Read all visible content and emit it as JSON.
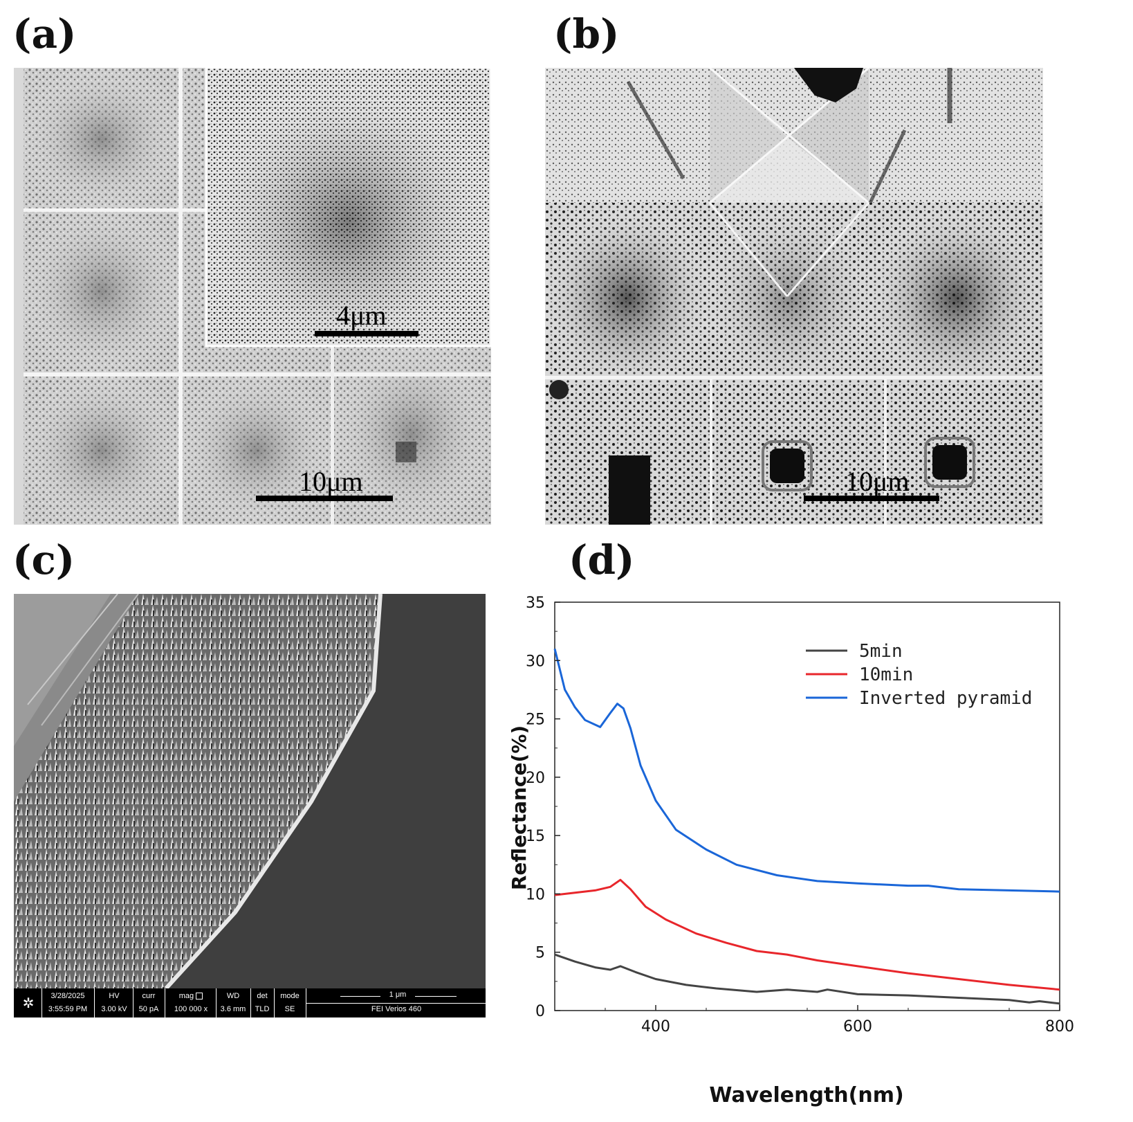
{
  "panels": {
    "a": {
      "label": "(a)",
      "scale_main": "10μm",
      "scale_inset": "4μm"
    },
    "b": {
      "label": "(b)",
      "scale_main": "10μm"
    },
    "c": {
      "label": "(c)",
      "databar": {
        "date": "3/28/2025",
        "time": "3:55:59 PM",
        "hv_label": "HV",
        "hv": "3.00 kV",
        "curr_label": "curr",
        "curr": "50 pA",
        "mag_label": "mag",
        "mag": "100 000 x",
        "wd_label": "WD",
        "wd": "3.6 mm",
        "det_label": "det",
        "det": "TLD",
        "mode_label": "mode",
        "mode": "SE",
        "scale": "1 μm",
        "instrument": "FEI Verios 460"
      }
    },
    "d": {
      "label": "(d)"
    }
  },
  "chart_data": {
    "type": "line",
    "xlabel": "Wavelength(nm)",
    "ylabel": "Reflectance(%)",
    "xlim": [
      300,
      800
    ],
    "ylim": [
      0,
      35
    ],
    "xticks": [
      400,
      600,
      800
    ],
    "yticks": [
      0,
      5,
      10,
      15,
      20,
      25,
      30,
      35
    ],
    "legend_position": "top-right",
    "series": [
      {
        "name": "5min",
        "color": "#444444",
        "x": [
          300,
          320,
          340,
          355,
          365,
          380,
          400,
          430,
          460,
          500,
          530,
          560,
          570,
          600,
          650,
          700,
          750,
          770,
          780,
          800
        ],
        "y": [
          4.8,
          4.2,
          3.7,
          3.5,
          3.8,
          3.3,
          2.7,
          2.2,
          1.9,
          1.6,
          1.8,
          1.6,
          1.8,
          1.4,
          1.3,
          1.1,
          0.9,
          0.7,
          0.8,
          0.6
        ]
      },
      {
        "name": "10min",
        "color": "#e8262b",
        "x": [
          300,
          320,
          340,
          355,
          365,
          375,
          390,
          410,
          440,
          470,
          500,
          530,
          560,
          600,
          650,
          700,
          750,
          800
        ],
        "y": [
          9.9,
          10.1,
          10.3,
          10.6,
          11.2,
          10.4,
          8.9,
          7.8,
          6.6,
          5.8,
          5.1,
          4.8,
          4.3,
          3.8,
          3.2,
          2.7,
          2.2,
          1.8
        ]
      },
      {
        "name": "Inverted pyramid",
        "color": "#1a66d8",
        "x": [
          300,
          310,
          320,
          330,
          345,
          355,
          362,
          368,
          375,
          385,
          400,
          420,
          450,
          480,
          520,
          560,
          600,
          650,
          670,
          700,
          750,
          800
        ],
        "y": [
          31.0,
          27.5,
          26.0,
          24.9,
          24.3,
          25.5,
          26.3,
          25.9,
          24.2,
          21.0,
          18.0,
          15.5,
          13.8,
          12.5,
          11.6,
          11.1,
          10.9,
          10.7,
          10.7,
          10.4,
          10.3,
          10.2
        ]
      }
    ]
  }
}
